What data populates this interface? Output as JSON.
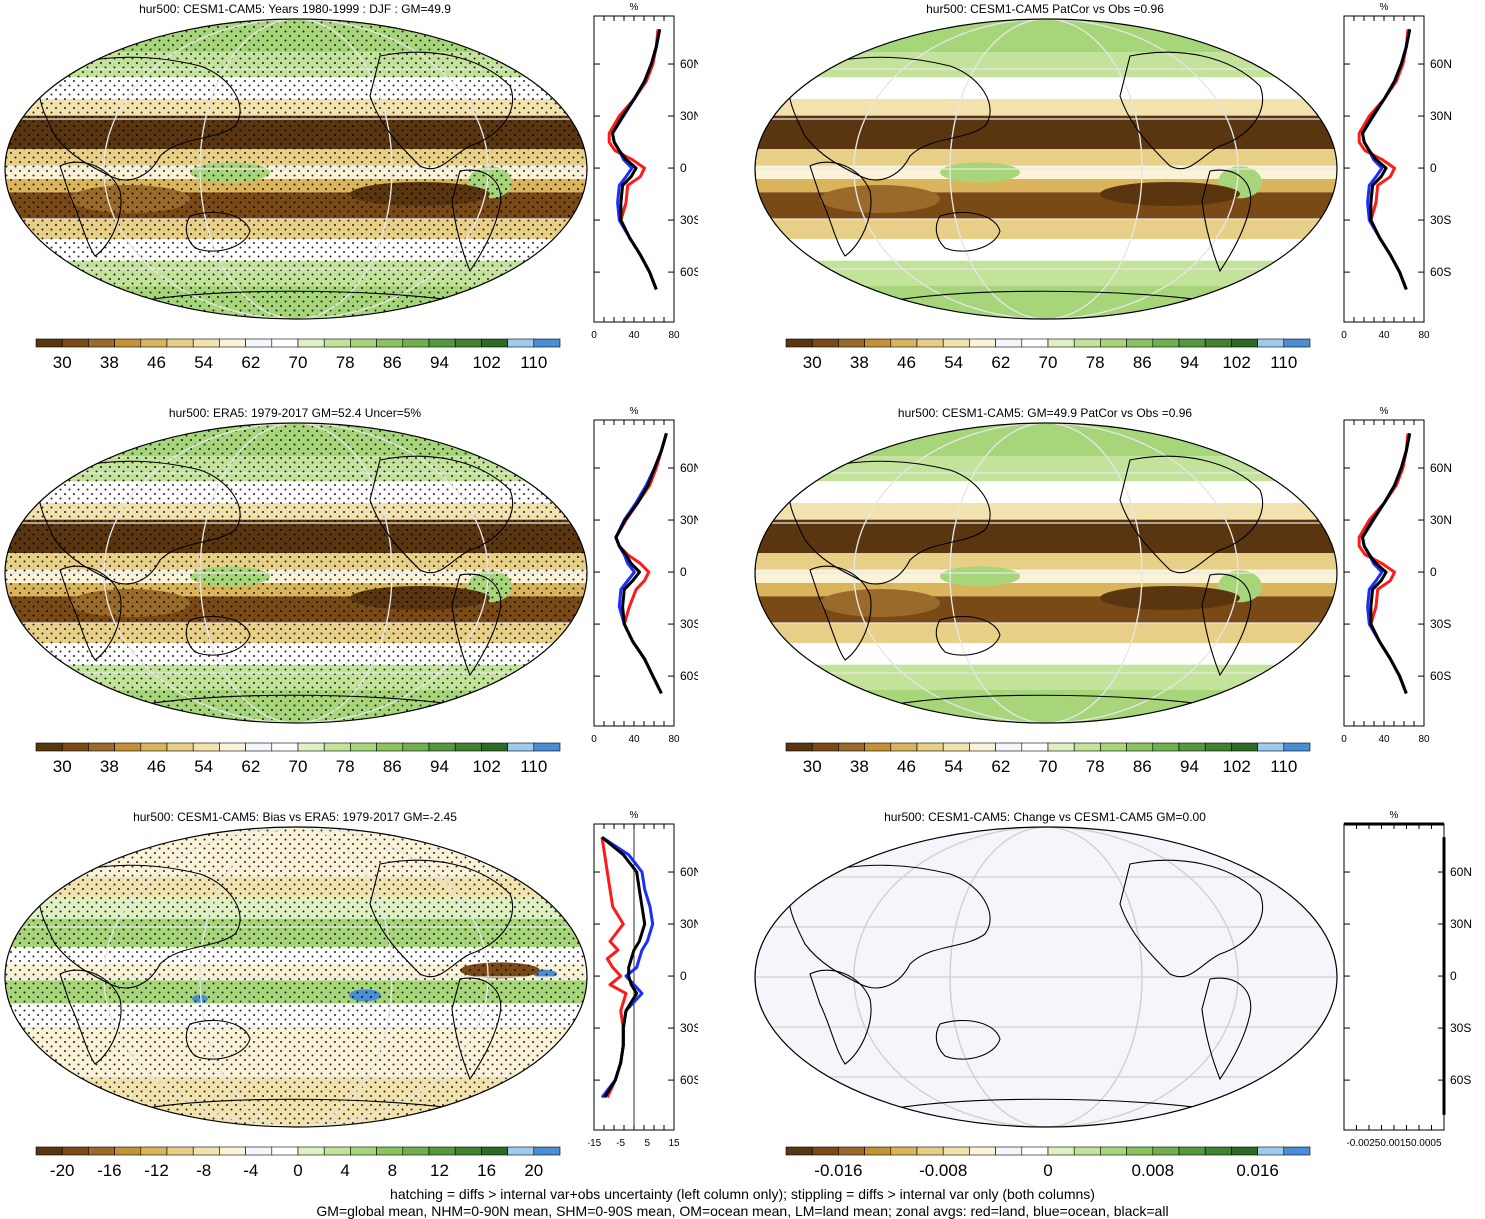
{
  "colors": {
    "land_line": "#ff1a1a",
    "ocean_line": "#1a2eff",
    "all_line": "#000000",
    "palette_abs": [
      "#5a3610",
      "#7a4a16",
      "#9a6a2a",
      "#c39234",
      "#d9b45a",
      "#e8cf88",
      "#f2e2ad",
      "#faf3d8",
      "#f4f6fb",
      "#ffffff",
      "#dff0c2",
      "#c3e39a",
      "#a7d57a",
      "#8ac45e",
      "#6fb04c",
      "#55993d",
      "#3f8231",
      "#2c6a26",
      "#9ccbec",
      "#4a8fd6"
    ],
    "palette_bias": [
      "#5a3610",
      "#7a4a16",
      "#9a6a2a",
      "#c39234",
      "#d9b45a",
      "#e8cf88",
      "#f2e2ad",
      "#faf3d8",
      "#f4f6fb",
      "#ffffff",
      "#dff0c2",
      "#c3e39a",
      "#a7d57a",
      "#8ac45e",
      "#6fb04c",
      "#55993d",
      "#3f8231",
      "#2c6a26",
      "#9ccbec",
      "#4a8fd6"
    ]
  },
  "panels": [
    {
      "title": "hur500: CESM1-CAM5: Years 1980-1999 : DJF : GM=49.9",
      "colorbar_labels": [
        "30",
        "38",
        "46",
        "54",
        "62",
        "70",
        "78",
        "86",
        "94",
        "102",
        "110"
      ],
      "zonal_xticks": [
        "0",
        "40",
        "80"
      ],
      "zonal_xlabel": "%",
      "zonal_lat_labels": [
        "60N",
        "30N",
        "0",
        "30S",
        "60S"
      ]
    },
    {
      "title": "hur500: CESM1-CAM5 PatCor vs Obs =0.96",
      "colorbar_labels": [
        "30",
        "38",
        "46",
        "54",
        "62",
        "70",
        "78",
        "86",
        "94",
        "102",
        "110"
      ],
      "zonal_xticks": [
        "0",
        "40",
        "80"
      ],
      "zonal_xlabel": "%",
      "zonal_lat_labels": [
        "60N",
        "30N",
        "0",
        "30S",
        "60S"
      ]
    },
    {
      "title": "hur500: ERA5: 1979-2017 GM=52.4 Uncer=5%",
      "colorbar_labels": [
        "30",
        "38",
        "46",
        "54",
        "62",
        "70",
        "78",
        "86",
        "94",
        "102",
        "110"
      ],
      "zonal_xticks": [
        "0",
        "40",
        "80"
      ],
      "zonal_xlabel": "%",
      "zonal_lat_labels": [
        "60N",
        "30N",
        "0",
        "30S",
        "60S"
      ]
    },
    {
      "title": "hur500: CESM1-CAM5: GM=49.9 PatCor vs Obs =0.96",
      "colorbar_labels": [
        "30",
        "38",
        "46",
        "54",
        "62",
        "70",
        "78",
        "86",
        "94",
        "102",
        "110"
      ],
      "zonal_xticks": [
        "0",
        "40",
        "80"
      ],
      "zonal_xlabel": "%",
      "zonal_lat_labels": [
        "60N",
        "30N",
        "0",
        "30S",
        "60S"
      ]
    },
    {
      "title": "hur500: CESM1-CAM5: Bias vs ERA5: 1979-2017 GM=-2.45",
      "colorbar_labels": [
        "-20",
        "-16",
        "-12",
        "-8",
        "-4",
        "0",
        "4",
        "8",
        "12",
        "16",
        "20"
      ],
      "zonal_xticks": [
        "-15",
        "-5",
        "5",
        "15"
      ],
      "zonal_xlabel": "%",
      "zonal_lat_labels": [
        "60N",
        "30N",
        "0",
        "30S",
        "60S"
      ]
    },
    {
      "title": "hur500: CESM1-CAM5: Change vs CESM1-CAM5 GM=0.00",
      "colorbar_labels": [
        "-0.016",
        "-0.008",
        "0",
        "0.008",
        "0.016"
      ],
      "zonal_xticks": [
        "-0.00250.00150.0005"
      ],
      "zonal_xlabel": "%",
      "zonal_lat_labels": [
        "60N",
        "30N",
        "0",
        "30S",
        "60S"
      ]
    }
  ],
  "chart_data": [
    {
      "type": "line",
      "title": "",
      "xlabel": "%",
      "ylabel": "",
      "xlim": [
        0,
        95
      ],
      "lat_ticks": [
        60,
        30,
        0,
        -30,
        -60
      ],
      "series": [
        {
          "name": "land",
          "lat": [
            80,
            70,
            60,
            50,
            40,
            30,
            20,
            15,
            10,
            5,
            0,
            -5,
            -10,
            -20,
            -30,
            -40,
            -50,
            -60,
            -70
          ],
          "values": [
            76,
            74,
            70,
            62,
            48,
            30,
            18,
            18,
            25,
            45,
            60,
            55,
            40,
            38,
            32,
            42,
            55,
            66,
            74
          ]
        },
        {
          "name": "ocean",
          "lat": [
            80,
            70,
            60,
            50,
            40,
            30,
            20,
            15,
            10,
            5,
            0,
            -5,
            -10,
            -20,
            -30,
            -40,
            -50,
            -60,
            -70
          ],
          "values": [
            78,
            74,
            68,
            60,
            48,
            35,
            22,
            24,
            30,
            35,
            45,
            38,
            30,
            28,
            30,
            42,
            55,
            66,
            74
          ]
        },
        {
          "name": "all",
          "lat": [
            80,
            70,
            60,
            50,
            40,
            30,
            20,
            15,
            10,
            5,
            0,
            -5,
            -10,
            -20,
            -30,
            -40,
            -50,
            -60,
            -70
          ],
          "values": [
            78,
            74,
            68,
            60,
            48,
            34,
            22,
            24,
            30,
            38,
            50,
            44,
            34,
            32,
            32,
            42,
            55,
            66,
            74
          ]
        }
      ]
    },
    {
      "type": "line",
      "title": "",
      "xlabel": "%",
      "ylabel": "",
      "xlim": [
        0,
        95
      ],
      "lat_ticks": [
        60,
        30,
        0,
        -30,
        -60
      ],
      "series": [
        {
          "name": "land",
          "lat": [
            80,
            70,
            60,
            50,
            40,
            30,
            20,
            15,
            10,
            5,
            0,
            -5,
            -10,
            -20,
            -30,
            -40,
            -50,
            -60,
            -70
          ],
          "values": [
            76,
            74,
            70,
            62,
            48,
            30,
            18,
            18,
            25,
            45,
            60,
            55,
            40,
            38,
            32,
            42,
            55,
            66,
            74
          ]
        },
        {
          "name": "ocean",
          "lat": [
            80,
            70,
            60,
            50,
            40,
            30,
            20,
            15,
            10,
            5,
            0,
            -5,
            -10,
            -20,
            -30,
            -40,
            -50,
            -60,
            -70
          ],
          "values": [
            78,
            74,
            68,
            60,
            48,
            35,
            22,
            24,
            30,
            35,
            45,
            38,
            30,
            28,
            30,
            42,
            55,
            66,
            74
          ]
        },
        {
          "name": "all",
          "lat": [
            80,
            70,
            60,
            50,
            40,
            30,
            20,
            15,
            10,
            5,
            0,
            -5,
            -10,
            -20,
            -30,
            -40,
            -50,
            -60,
            -70
          ],
          "values": [
            78,
            74,
            68,
            60,
            48,
            34,
            22,
            24,
            30,
            38,
            50,
            44,
            34,
            32,
            32,
            42,
            55,
            66,
            74
          ]
        }
      ]
    },
    {
      "type": "line",
      "title": "",
      "xlabel": "%",
      "ylabel": "",
      "xlim": [
        0,
        95
      ],
      "lat_ticks": [
        60,
        30,
        0,
        -30,
        -60
      ],
      "series": [
        {
          "name": "land",
          "lat": [
            80,
            70,
            60,
            50,
            40,
            30,
            20,
            15,
            10,
            5,
            0,
            -5,
            -10,
            -20,
            -30,
            -40,
            -50,
            -60,
            -70
          ],
          "values": [
            86,
            80,
            74,
            66,
            52,
            38,
            26,
            30,
            40,
            55,
            65,
            60,
            50,
            42,
            36,
            46,
            60,
            70,
            80
          ]
        },
        {
          "name": "ocean",
          "lat": [
            80,
            70,
            60,
            50,
            40,
            30,
            20,
            15,
            10,
            5,
            0,
            -5,
            -10,
            -20,
            -30,
            -40,
            -50,
            -60,
            -70
          ],
          "values": [
            86,
            80,
            72,
            62,
            50,
            36,
            26,
            30,
            36,
            40,
            48,
            40,
            32,
            30,
            36,
            46,
            60,
            70,
            80
          ]
        },
        {
          "name": "all",
          "lat": [
            80,
            70,
            60,
            50,
            40,
            30,
            20,
            15,
            10,
            5,
            0,
            -5,
            -10,
            -20,
            -30,
            -40,
            -50,
            -60,
            -70
          ],
          "values": [
            86,
            80,
            72,
            64,
            52,
            37,
            26,
            30,
            38,
            44,
            54,
            46,
            36,
            34,
            36,
            46,
            60,
            70,
            80
          ]
        }
      ]
    },
    {
      "type": "line",
      "title": "",
      "xlabel": "%",
      "ylabel": "",
      "xlim": [
        0,
        95
      ],
      "lat_ticks": [
        60,
        30,
        0,
        -30,
        -60
      ],
      "series": [
        {
          "name": "land",
          "lat": [
            80,
            70,
            60,
            50,
            40,
            30,
            20,
            15,
            10,
            5,
            0,
            -5,
            -10,
            -20,
            -30,
            -40,
            -50,
            -60,
            -70
          ],
          "values": [
            76,
            74,
            70,
            62,
            48,
            30,
            18,
            18,
            25,
            45,
            60,
            55,
            40,
            38,
            32,
            42,
            55,
            66,
            74
          ]
        },
        {
          "name": "ocean",
          "lat": [
            80,
            70,
            60,
            50,
            40,
            30,
            20,
            15,
            10,
            5,
            0,
            -5,
            -10,
            -20,
            -30,
            -40,
            -50,
            -60,
            -70
          ],
          "values": [
            78,
            74,
            68,
            60,
            48,
            35,
            22,
            24,
            30,
            35,
            45,
            38,
            30,
            28,
            30,
            42,
            55,
            66,
            74
          ]
        },
        {
          "name": "all",
          "lat": [
            80,
            70,
            60,
            50,
            40,
            30,
            20,
            15,
            10,
            5,
            0,
            -5,
            -10,
            -20,
            -30,
            -40,
            -50,
            -60,
            -70
          ],
          "values": [
            78,
            74,
            68,
            60,
            48,
            34,
            22,
            24,
            30,
            38,
            50,
            44,
            34,
            32,
            32,
            42,
            55,
            66,
            74
          ]
        }
      ]
    },
    {
      "type": "line",
      "title": "",
      "xlabel": "%",
      "ylabel": "",
      "xlim": [
        -15,
        15
      ],
      "lat_ticks": [
        60,
        30,
        0,
        -30,
        -60
      ],
      "series": [
        {
          "name": "land",
          "lat": [
            80,
            70,
            60,
            50,
            40,
            30,
            20,
            15,
            10,
            5,
            0,
            -5,
            -10,
            -20,
            -30,
            -40,
            -50,
            -60,
            -70
          ],
          "values": [
            -12,
            -11,
            -10,
            -9,
            -8,
            -4,
            -9,
            -6,
            -10,
            -8,
            -5,
            -9,
            -3,
            -5,
            -4,
            -4,
            -5,
            -7,
            -10
          ]
        },
        {
          "name": "ocean",
          "lat": [
            80,
            70,
            60,
            50,
            40,
            30,
            20,
            15,
            10,
            5,
            0,
            -5,
            -10,
            -20,
            -30,
            -40,
            -50,
            -60,
            -70
          ],
          "values": [
            -12,
            -2,
            3,
            4,
            6,
            7,
            5,
            3,
            2,
            1,
            -3,
            0,
            3,
            -3,
            -4,
            -4,
            -5,
            -7,
            -12
          ]
        },
        {
          "name": "all",
          "lat": [
            80,
            70,
            60,
            50,
            40,
            30,
            20,
            15,
            10,
            5,
            0,
            -5,
            -10,
            -20,
            -30,
            -40,
            -50,
            -60,
            -70
          ],
          "values": [
            -12,
            -4,
            1,
            2,
            3,
            4,
            2,
            0,
            -1,
            -2,
            -2,
            -1,
            1,
            -3,
            -4,
            -4,
            -5,
            -7,
            -11
          ]
        }
      ]
    },
    {
      "type": "line",
      "title": "",
      "xlabel": "%",
      "ylabel": "",
      "xlim": [
        -0.003,
        0.0006
      ],
      "lat_ticks": [
        60,
        30,
        0,
        -30,
        -60
      ],
      "series": [
        {
          "name": "land",
          "lat": [
            80,
            -80
          ],
          "values": [
            0,
            0
          ]
        },
        {
          "name": "ocean",
          "lat": [
            80,
            -80
          ],
          "values": [
            0,
            0
          ]
        },
        {
          "name": "all",
          "lat": [
            80,
            -80
          ],
          "values": [
            0,
            0
          ]
        }
      ]
    }
  ],
  "footer": {
    "line1": "hatching = diffs > internal var+obs uncertainty (left column only); stippling = diffs > internal var only (both columns)",
    "line2": "GM=global mean, NHM=0-90N mean, SHM=0-90S mean, OM=ocean mean, LM=land mean; zonal avgs: red=land, blue=ocean, black=all"
  }
}
